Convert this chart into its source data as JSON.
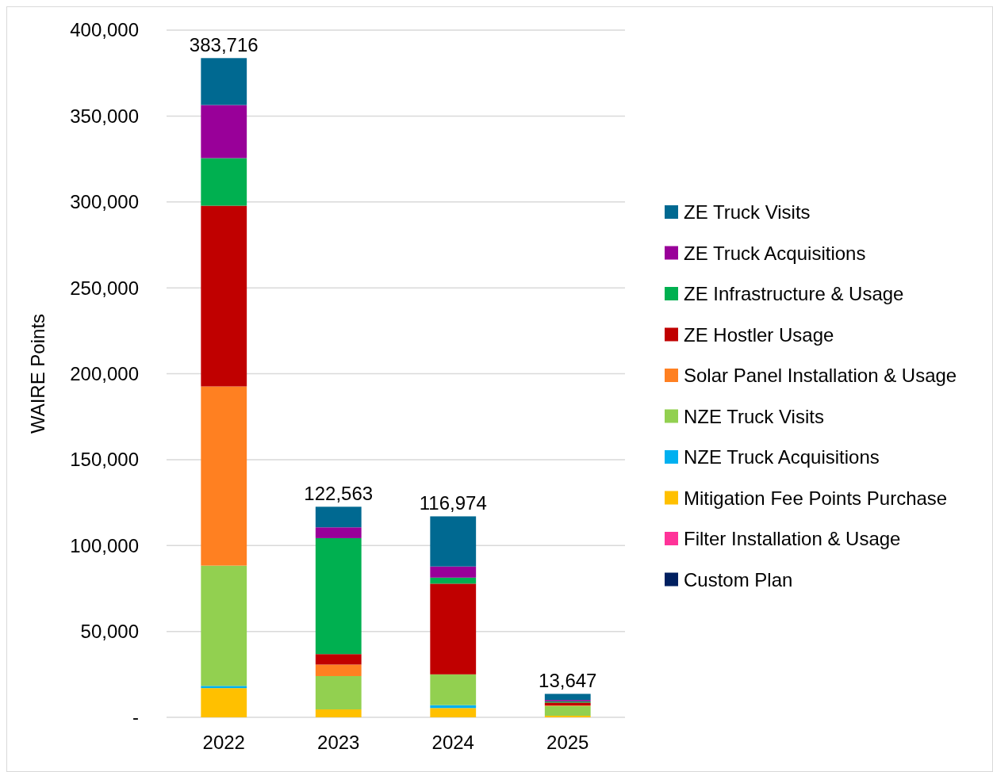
{
  "chart_data": {
    "type": "bar",
    "stacked": true,
    "ylabel": "WAIRE Points",
    "categories": [
      "2022",
      "2023",
      "2024",
      "2025"
    ],
    "series": [
      {
        "name": "Custom Plan",
        "color": "#002060",
        "values": [
          0,
          0,
          0,
          0
        ]
      },
      {
        "name": "Filter Installation & Usage",
        "color": "#ff3399",
        "values": [
          0,
          0,
          0,
          0
        ]
      },
      {
        "name": "Mitigation Fee Points Purchase",
        "color": "#ffc000",
        "values": [
          17000,
          4600,
          5400,
          900
        ]
      },
      {
        "name": "NZE Truck Acquisitions",
        "color": "#00b0f0",
        "values": [
          1300,
          0,
          1700,
          0
        ]
      },
      {
        "name": "NZE Truck Visits",
        "color": "#92d050",
        "values": [
          70000,
          19400,
          17900,
          5700
        ]
      },
      {
        "name": "Solar Panel Installation & Usage",
        "color": "#ff8021",
        "values": [
          104300,
          6700,
          0,
          300
        ]
      },
      {
        "name": "ZE Hostler Usage",
        "color": "#c00000",
        "values": [
          105200,
          6100,
          52800,
          1700
        ]
      },
      {
        "name": "ZE Infrastructure & Usage",
        "color": "#00b050",
        "values": [
          27700,
          67500,
          3500,
          700
        ]
      },
      {
        "name": "ZE Truck Acquisitions",
        "color": "#990099",
        "values": [
          30900,
          6300,
          6500,
          800
        ]
      },
      {
        "name": "ZE Truck Visits",
        "color": "#006991",
        "values": [
          27316,
          11963,
          29174,
          3547
        ]
      }
    ],
    "totals": [
      "383,716",
      "122,563",
      "116,974",
      "13,647"
    ],
    "ylim": [
      0,
      400000
    ],
    "yticks": [
      {
        "value": 0,
        "label": "-"
      },
      {
        "value": 50000,
        "label": "50,000"
      },
      {
        "value": 100000,
        "label": "100,000"
      },
      {
        "value": 150000,
        "label": "150,000"
      },
      {
        "value": 200000,
        "label": "200,000"
      },
      {
        "value": 250000,
        "label": "250,000"
      },
      {
        "value": 300000,
        "label": "300,000"
      },
      {
        "value": 350000,
        "label": "350,000"
      },
      {
        "value": 400000,
        "label": "400,000"
      }
    ],
    "grid": "y",
    "legend": "right"
  }
}
